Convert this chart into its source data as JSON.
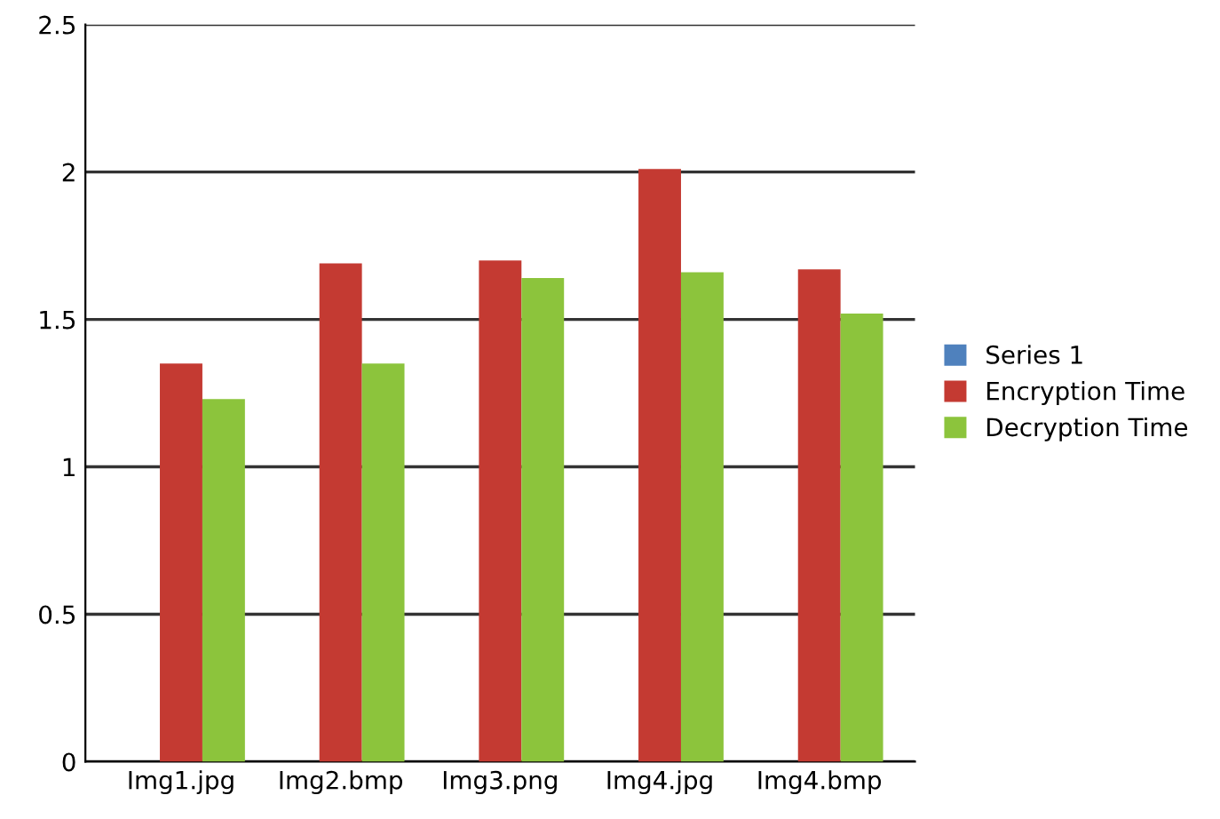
{
  "chart_data": {
    "type": "bar",
    "categories": [
      "Img1.jpg",
      "Img2.bmp",
      "Img3.png",
      "Img4.jpg",
      "Img4.bmp"
    ],
    "series": [
      {
        "name": "Series 1",
        "color": "#4f81bd",
        "values": [
          null,
          null,
          null,
          null,
          null
        ]
      },
      {
        "name": "Encryption Time",
        "color": "#c43a32",
        "values": [
          1.35,
          1.69,
          1.7,
          2.01,
          1.67
        ]
      },
      {
        "name": "Decryption Time",
        "color": "#8cc43c",
        "values": [
          1.23,
          1.35,
          1.64,
          1.66,
          1.52
        ]
      }
    ],
    "ylim": [
      0,
      2.5
    ],
    "yticks": [
      0,
      0.5,
      1,
      1.5,
      2,
      2.5
    ],
    "grid": "y",
    "legend": "right"
  }
}
